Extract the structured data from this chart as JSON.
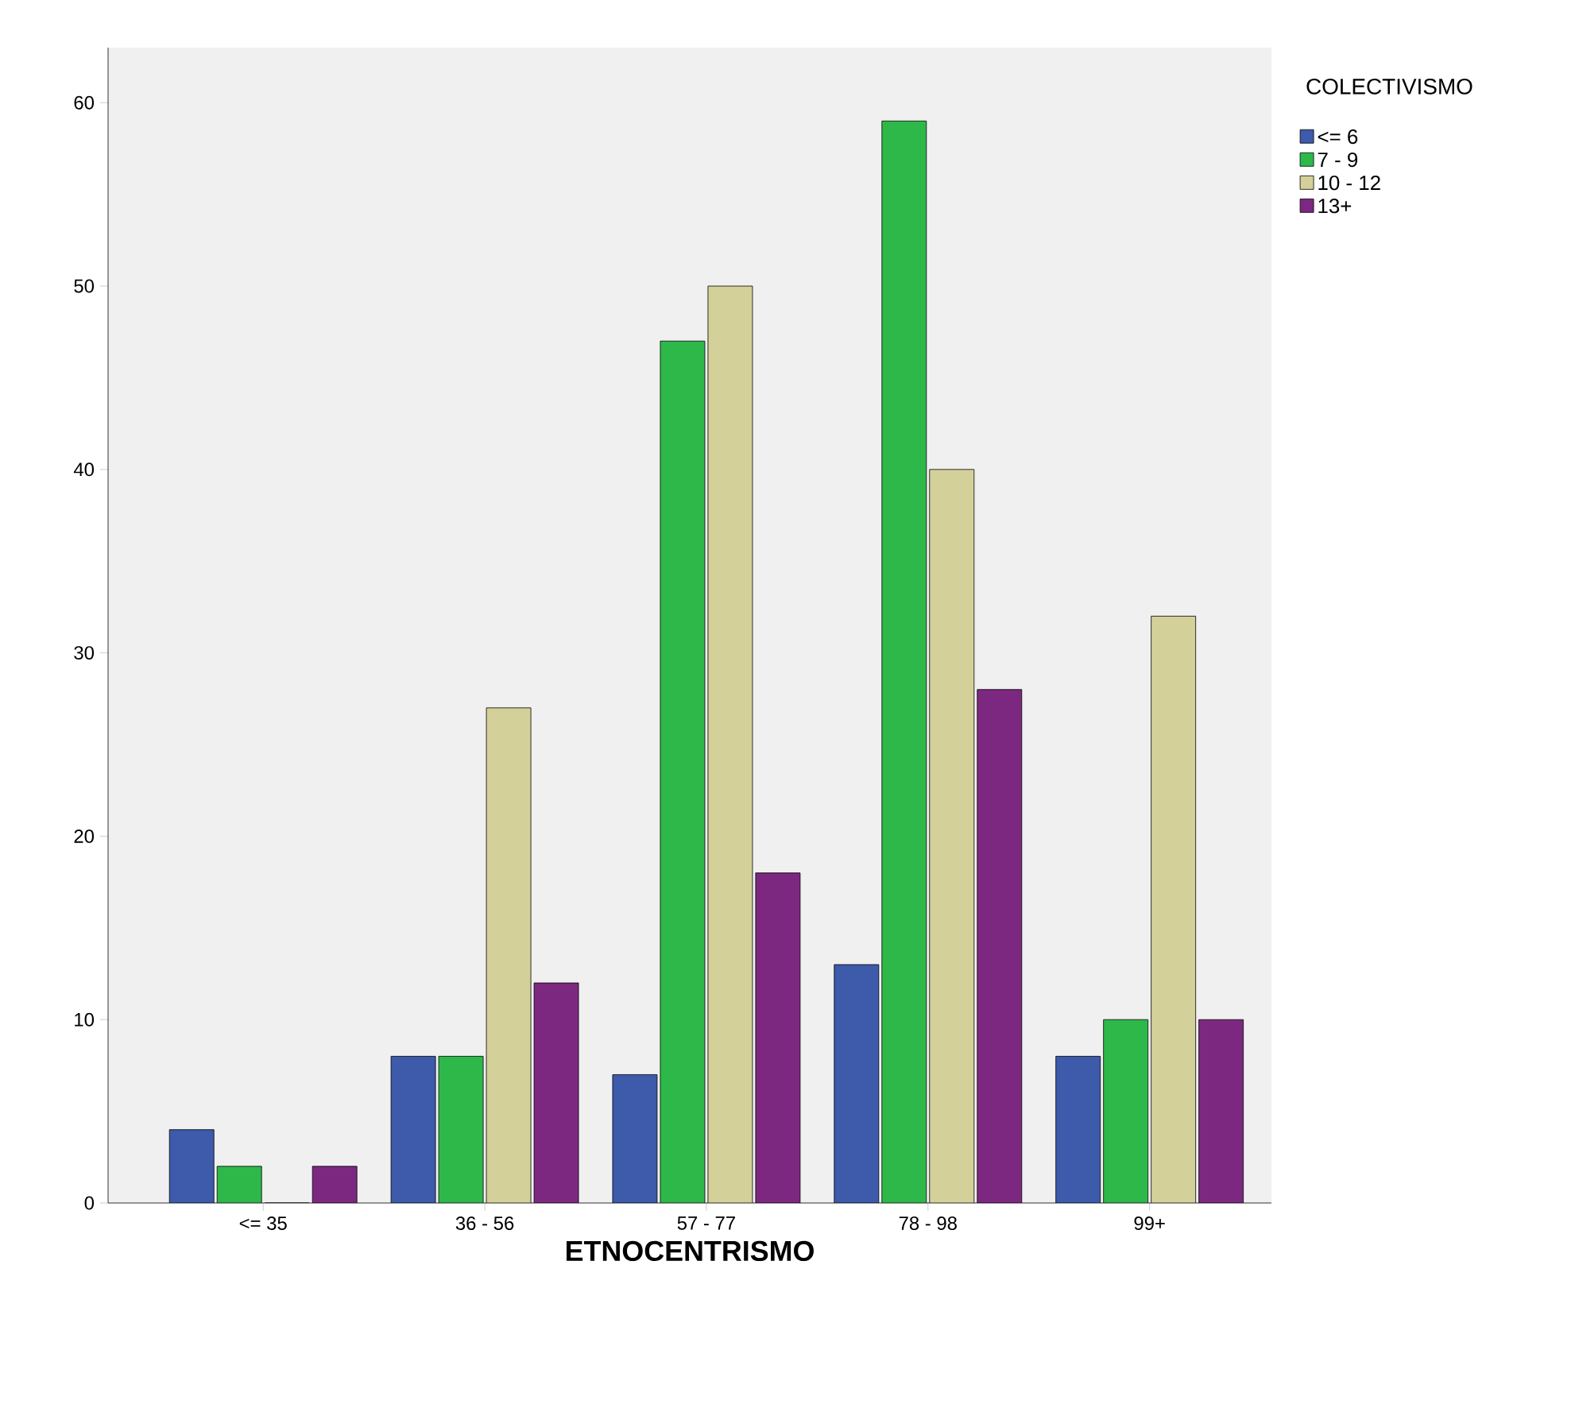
{
  "chart_data": {
    "type": "bar",
    "xlabel": "ETNOCENTRISMO",
    "legend_title": "COLECTIVISMO",
    "categories": [
      "<= 35",
      "36 - 56",
      "57 - 77",
      "78 - 98",
      "99+"
    ],
    "series": [
      {
        "name": "<= 6",
        "color": "#3d5aab",
        "values": [
          4,
          8,
          7,
          13,
          8
        ]
      },
      {
        "name": "7 - 9",
        "color": "#2fb84a",
        "values": [
          2,
          8,
          47,
          59,
          10
        ]
      },
      {
        "name": "10 - 12",
        "color": "#d4d09a",
        "values": [
          0,
          27,
          50,
          40,
          32
        ]
      },
      {
        "name": "13+",
        "color": "#7d2880",
        "values": [
          2,
          12,
          18,
          28,
          10
        ]
      }
    ],
    "ylim": [
      0,
      63
    ],
    "yticks": [
      0,
      10,
      20,
      30,
      40,
      50,
      60
    ],
    "grid": false,
    "legend": "top right"
  }
}
